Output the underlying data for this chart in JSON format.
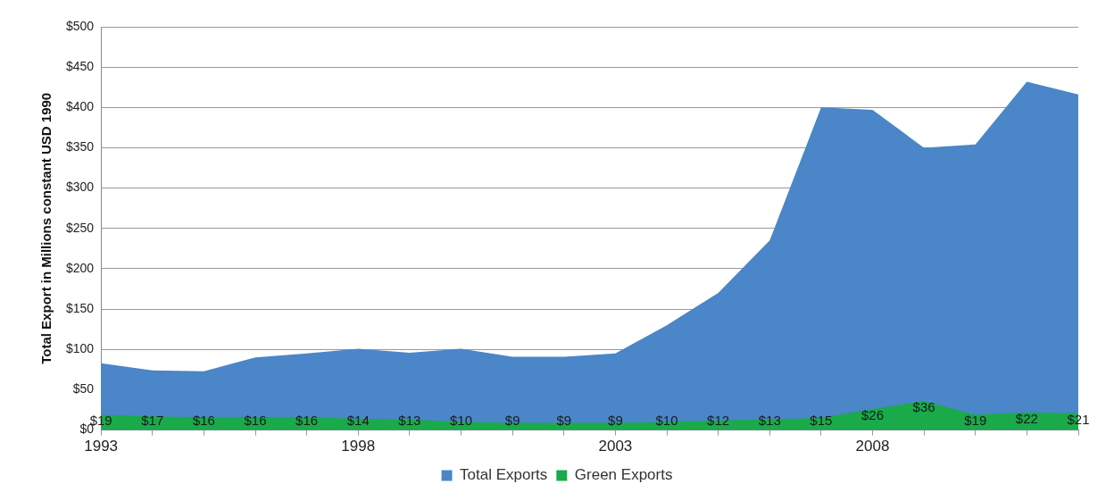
{
  "chart_data": {
    "type": "area",
    "ylabel": "Total Export in Millions constant USD 1990",
    "categories": [
      "1993",
      null,
      null,
      null,
      null,
      "1998",
      null,
      null,
      null,
      null,
      "2003",
      null,
      null,
      null,
      null,
      "2008",
      null,
      null,
      null,
      null
    ],
    "series": [
      {
        "name": "Total Exports",
        "color": "#4a86c8",
        "values": [
          83,
          74,
          73,
          90,
          95,
          101,
          96,
          101,
          91,
          91,
          95,
          130,
          170,
          235,
          400,
          397,
          350,
          354,
          432,
          416
        ]
      },
      {
        "name": "Green Exports",
        "color": "#1aaa4a",
        "values": [
          19,
          17,
          16,
          16,
          16,
          14,
          13,
          10,
          9,
          9,
          9,
          10,
          12,
          13,
          15,
          26,
          36,
          19,
          22,
          21
        ],
        "value_labels": [
          "$19",
          "$17",
          "$16",
          "$16",
          "$16",
          "$14",
          "$13",
          "$10",
          "$9",
          "$9",
          "$9",
          "$10",
          "$12",
          "$13",
          "$15",
          "$26",
          "$36",
          "$19",
          "$22",
          "$21"
        ]
      }
    ],
    "ylim": [
      0,
      500
    ],
    "yticks": [
      {
        "value": 0,
        "label": "$0"
      },
      {
        "value": 50,
        "label": "$50"
      },
      {
        "value": 100,
        "label": "$100"
      },
      {
        "value": 150,
        "label": "$150"
      },
      {
        "value": 200,
        "label": "$200"
      },
      {
        "value": 250,
        "label": "$250"
      },
      {
        "value": 300,
        "label": "$300"
      },
      {
        "value": 350,
        "label": "$350"
      },
      {
        "value": 400,
        "label": "$400"
      },
      {
        "value": 450,
        "label": "$450"
      },
      {
        "value": 500,
        "label": "$500"
      }
    ],
    "grid": "y",
    "legend": "bottom"
  }
}
